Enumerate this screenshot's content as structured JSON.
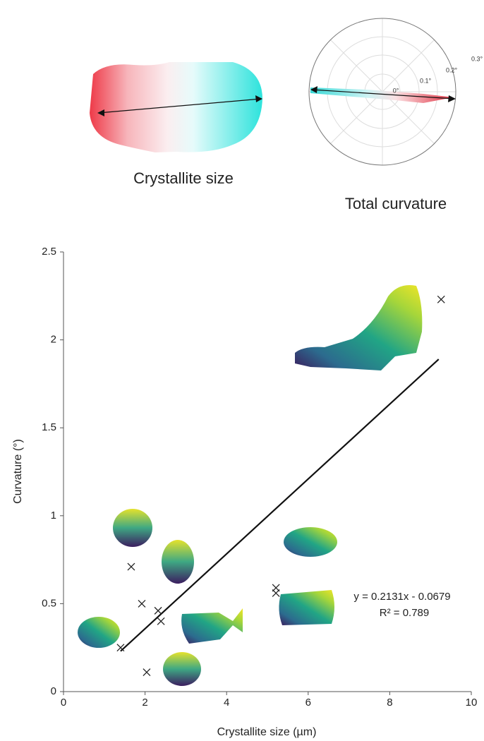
{
  "insets": {
    "size_caption": "Crystallite size",
    "curvature_caption": "Total curvature",
    "polar_ticks": [
      "0°",
      "0.1°",
      "0.2°",
      "0.3°"
    ]
  },
  "chart_data": {
    "type": "scatter",
    "x_label": "Crystallite size (µm)",
    "y_label": "Curvature (°)",
    "xlim": [
      0,
      10
    ],
    "xticks": [
      0,
      2,
      4,
      6,
      8,
      10
    ],
    "ylim": [
      0,
      2.5
    ],
    "yticks": [
      0,
      0.5,
      1,
      1.5,
      2,
      2.5
    ],
    "series": [
      {
        "color": "#222222",
        "x": [
          9.26,
          1.66,
          1.92,
          2.32,
          2.39,
          2.04,
          1.4,
          5.21,
          5.21
        ],
        "values": [
          2.23,
          0.71,
          0.5,
          0.46,
          0.4,
          0.11,
          0.25,
          0.59,
          0.56
        ]
      }
    ],
    "trendline": {
      "x": [
        1.4,
        9.2
      ],
      "y": [
        0.23,
        1.89
      ],
      "color": "#111111",
      "equation": "y = 0.2131x - 0.0679",
      "r2_label": "R² = 0.789"
    }
  }
}
